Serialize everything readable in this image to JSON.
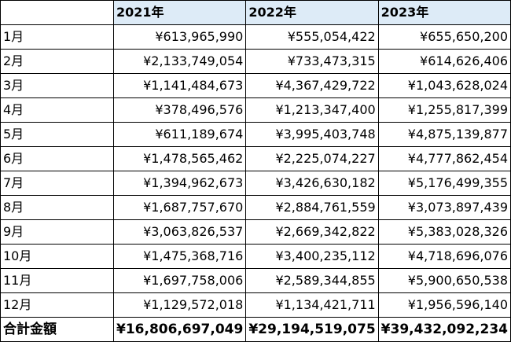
{
  "headers": [
    "",
    "2021年",
    "2022年",
    "2023年"
  ],
  "rows": [
    {
      "label": "1月",
      "values": [
        "¥613,965,990",
        "¥555,054,422",
        "¥655,650,200"
      ]
    },
    {
      "label": "2月",
      "values": [
        "¥2,133,749,054",
        "¥733,473,315",
        "¥614,626,406"
      ]
    },
    {
      "label": "3月",
      "values": [
        "¥1,141,484,673",
        "¥4,367,429,722",
        "¥1,043,628,024"
      ]
    },
    {
      "label": "4月",
      "values": [
        "¥378,496,576",
        "¥1,213,347,400",
        "¥1,255,817,399"
      ]
    },
    {
      "label": "5月",
      "values": [
        "¥611,189,674",
        "¥3,995,403,748",
        "¥4,875,139,877"
      ]
    },
    {
      "label": "6月",
      "values": [
        "¥1,478,565,462",
        "¥2,225,074,227",
        "¥4,777,862,454"
      ]
    },
    {
      "label": "7月",
      "values": [
        "¥1,394,962,673",
        "¥3,426,630,182",
        "¥5,176,499,355"
      ]
    },
    {
      "label": "8月",
      "values": [
        "¥1,687,757,670",
        "¥2,884,761,559",
        "¥3,073,897,439"
      ]
    },
    {
      "label": "9月",
      "values": [
        "¥3,063,826,537",
        "¥2,669,342,822",
        "¥5,383,028,326"
      ]
    },
    {
      "label": "10月",
      "values": [
        "¥1,475,368,716",
        "¥3,400,235,112",
        "¥4,718,696,076"
      ]
    },
    {
      "label": "11月",
      "values": [
        "¥1,697,758,006",
        "¥2,589,344,855",
        "¥5,900,650,538"
      ]
    },
    {
      "label": "12月",
      "values": [
        "¥1,129,572,018",
        "¥1,134,421,711",
        "¥1,956,596,140"
      ]
    }
  ],
  "total": {
    "label": "合計金額",
    "values": [
      "¥16,806,697,049",
      "¥29,194,519,075",
      "¥39,432,092,234"
    ]
  },
  "colors": {
    "header_fill": "#ddebf7",
    "border": "#000000"
  }
}
